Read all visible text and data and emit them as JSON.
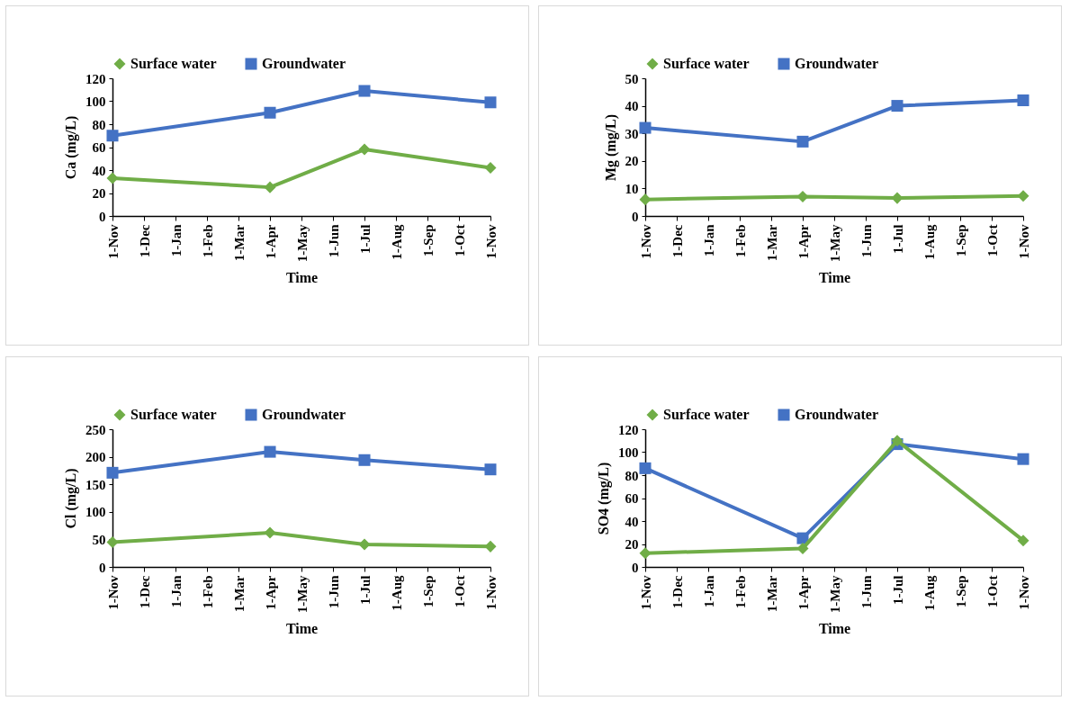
{
  "chart_data": [
    {
      "type": "line",
      "xlabel": "Time",
      "ylabel": "Ca (mg/L)",
      "legend": "top",
      "line_style": "solid",
      "categories": [
        "1-Nov",
        "1-Dec",
        "1-Jan",
        "1-Feb",
        "1-Mar",
        "1-Apr",
        "1-May",
        "1-Jun",
        "1-Jul",
        "1-Aug",
        "1-Sep",
        "1-Oct",
        "1-Nov"
      ],
      "ylim": [
        0,
        120
      ],
      "yticks": [
        0,
        20,
        40,
        60,
        80,
        100,
        120
      ],
      "series": [
        {
          "name": "Surface water",
          "color": "#70ad47",
          "marker": "diamond",
          "values": [
            33,
            null,
            null,
            null,
            null,
            25,
            null,
            null,
            58,
            null,
            null,
            null,
            42
          ]
        },
        {
          "name": "Groundwater",
          "color": "#4472c4",
          "marker": "square",
          "values": [
            70,
            null,
            null,
            null,
            null,
            90,
            null,
            null,
            109,
            null,
            null,
            null,
            99
          ]
        }
      ]
    },
    {
      "type": "line",
      "xlabel": "Time",
      "ylabel": "Mg (mg/L)",
      "legend": "top",
      "line_style": "solid",
      "categories": [
        "1-Nov",
        "1-Dec",
        "1-Jan",
        "1-Feb",
        "1-Mar",
        "1-Apr",
        "1-May",
        "1-Jun",
        "1-Jul",
        "1-Aug",
        "1-Sep",
        "1-Oct",
        "1-Nov"
      ],
      "ylim": [
        0,
        50
      ],
      "yticks": [
        0,
        10,
        20,
        30,
        40,
        50
      ],
      "series": [
        {
          "name": "Surface water",
          "color": "#70ad47",
          "marker": "diamond",
          "values": [
            6,
            null,
            null,
            null,
            null,
            7,
            null,
            null,
            6.5,
            null,
            null,
            null,
            7.3
          ]
        },
        {
          "name": "Groundwater",
          "color": "#4472c4",
          "marker": "square",
          "values": [
            32,
            null,
            null,
            null,
            null,
            27,
            null,
            null,
            40,
            null,
            null,
            null,
            42
          ]
        }
      ]
    },
    {
      "type": "line",
      "xlabel": "Time",
      "ylabel": "Cl (mg/L)",
      "legend": "top",
      "line_style": "solid",
      "categories": [
        "1-Nov",
        "1-Dec",
        "1-Jan",
        "1-Feb",
        "1-Mar",
        "1-Apr",
        "1-May",
        "1-Jun",
        "1-Jul",
        "1-Aug",
        "1-Sep",
        "1-Oct",
        "1-Nov"
      ],
      "ylim": [
        0,
        250
      ],
      "yticks": [
        0,
        50,
        100,
        150,
        200,
        250
      ],
      "series": [
        {
          "name": "Surface water",
          "color": "#70ad47",
          "marker": "diamond",
          "values": [
            45,
            null,
            null,
            null,
            null,
            62,
            null,
            null,
            41,
            null,
            null,
            null,
            37
          ]
        },
        {
          "name": "Groundwater",
          "color": "#4472c4",
          "marker": "square",
          "values": [
            171,
            null,
            null,
            null,
            null,
            209,
            null,
            null,
            194,
            null,
            null,
            null,
            177
          ]
        }
      ]
    },
    {
      "type": "line",
      "xlabel": "Time",
      "ylabel": "SO4 (mg/L)",
      "legend": "top",
      "line_style": "solid",
      "categories": [
        "1-Nov",
        "1-Dec",
        "1-Jan",
        "1-Feb",
        "1-Mar",
        "1-Apr",
        "1-May",
        "1-Jun",
        "1-Jul",
        "1-Aug",
        "1-Sep",
        "1-Oct",
        "1-Nov"
      ],
      "ylim": [
        0,
        120
      ],
      "yticks": [
        0,
        20,
        40,
        60,
        80,
        100,
        120
      ],
      "series": [
        {
          "name": "Surface water",
          "color": "#70ad47",
          "marker": "diamond",
          "values": [
            12,
            null,
            null,
            null,
            null,
            16,
            null,
            null,
            110,
            null,
            null,
            null,
            23
          ]
        },
        {
          "name": "Groundwater",
          "color": "#4472c4",
          "marker": "square",
          "values": [
            86,
            null,
            null,
            null,
            null,
            25,
            null,
            null,
            107,
            null,
            null,
            null,
            94
          ]
        }
      ]
    }
  ]
}
